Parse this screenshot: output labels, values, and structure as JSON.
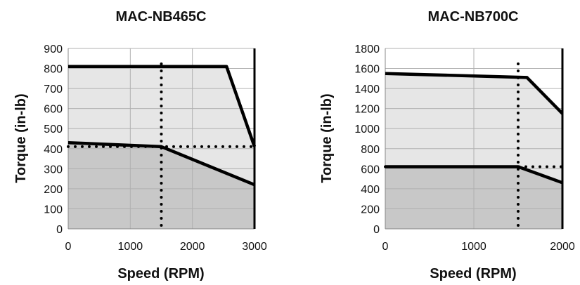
{
  "chart_data": [
    {
      "type": "area",
      "title": "MAC-NB465C",
      "xlabel": "Speed (RPM)",
      "ylabel": "Torque (in-lb)",
      "xlim": [
        0,
        3000
      ],
      "ylim": [
        0,
        900
      ],
      "x_ticks": [
        0,
        1000,
        2000,
        3000
      ],
      "y_ticks": [
        0,
        100,
        200,
        300,
        400,
        500,
        600,
        700,
        800,
        900
      ],
      "grid": true,
      "series": [
        {
          "x": [
            0,
            2550,
            3000
          ],
          "y": [
            810,
            810,
            410
          ]
        },
        {
          "x": [
            0,
            1500,
            3000
          ],
          "y": [
            430,
            410,
            220
          ]
        }
      ],
      "rated_speed": 1500,
      "rated_torque": 410
    },
    {
      "type": "area",
      "title": "MAC-NB700C",
      "xlabel": "Speed (RPM)",
      "ylabel": "Torque (in-lb)",
      "xlim": [
        0,
        2000
      ],
      "ylim": [
        0,
        1800
      ],
      "x_ticks": [
        0,
        1000,
        2000
      ],
      "y_ticks": [
        0,
        200,
        400,
        600,
        800,
        1000,
        1200,
        1400,
        1600,
        1800
      ],
      "grid": true,
      "series": [
        {
          "x": [
            0,
            1600,
            2000
          ],
          "y": [
            1550,
            1510,
            1150
          ]
        },
        {
          "x": [
            0,
            1500,
            2000
          ],
          "y": [
            620,
            620,
            460
          ]
        }
      ],
      "rated_speed": 1500,
      "rated_torque": 620
    }
  ],
  "colors": {
    "outer_fill": "#e6e6e6",
    "inner_fill": "#c8c8c8",
    "grid": "#b0b0b0",
    "line": "#000000"
  }
}
